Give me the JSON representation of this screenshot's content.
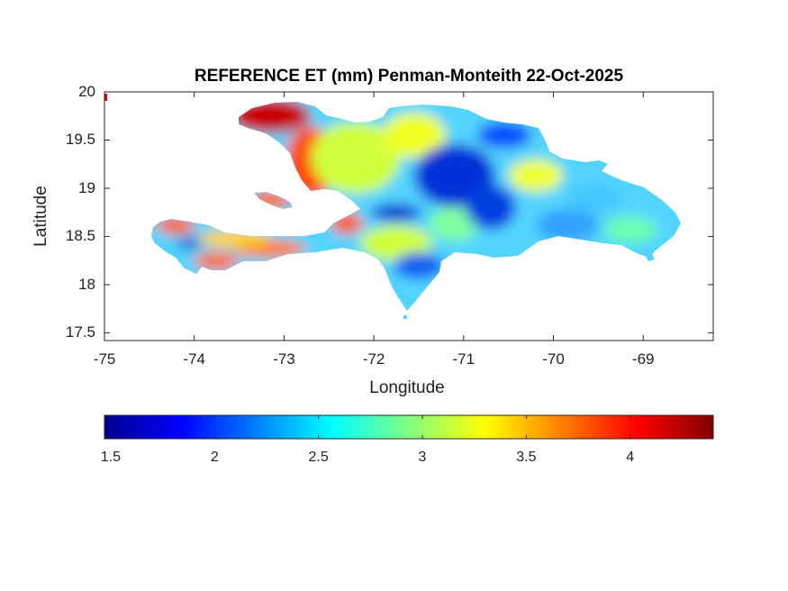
{
  "title": "REFERENCE ET (mm) Penman-Monteith 22-Oct-2025",
  "axes": {
    "xlabel": "Longitude",
    "ylabel": "Latitude",
    "xlim": [
      -75,
      -68.22
    ],
    "ylim": [
      17.42,
      20
    ],
    "xticks": [
      -75,
      -74,
      -73,
      -72,
      -71,
      -70,
      -69
    ],
    "yticks": [
      20,
      19.5,
      19,
      18.5,
      18,
      17.5
    ],
    "xtick_labels": [
      "-75",
      "-74",
      "-73",
      "-72",
      "-71",
      "-70",
      "-69"
    ],
    "ytick_labels": [
      "20",
      "19.5",
      "19",
      "18.5",
      "18",
      "17.5"
    ]
  },
  "colorbar": {
    "colormap": "jet",
    "range": [
      1.47,
      4.4
    ],
    "ticks": [
      1.5,
      2,
      2.5,
      3,
      3.5,
      4
    ],
    "tick_labels": [
      "1.5",
      "2",
      "2.5",
      "3",
      "3.5",
      "4"
    ],
    "orientation": "horizontal"
  },
  "map": {
    "region": "Hispaniola",
    "background_color": "#ffffff",
    "description": "Gridded reference evapotranspiration field over the island; high values (red) in western Haiti, low values (blue) over central highlands of the Dominican Republic."
  }
}
